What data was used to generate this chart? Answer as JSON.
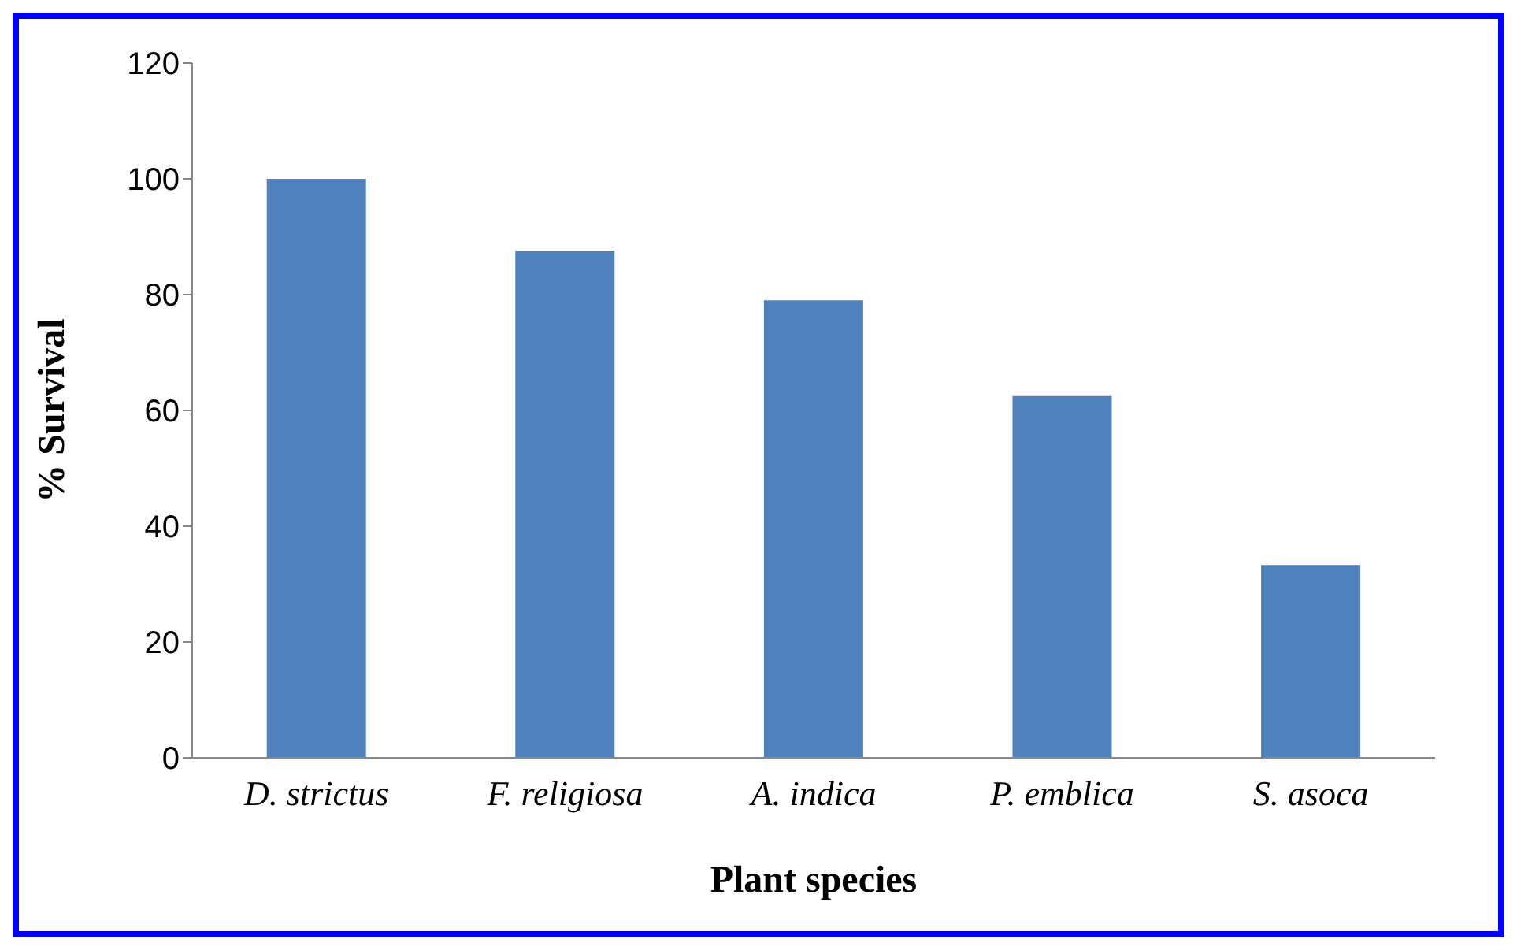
{
  "chart_data": {
    "type": "bar",
    "xlabel": "Plant species",
    "ylabel": "% Survival",
    "categories": [
      "D. strictus",
      "F. religiosa",
      "A. indica",
      "P. emblica",
      "S. asoca"
    ],
    "values": [
      100,
      87.5,
      79,
      62.5,
      33.3
    ],
    "color": "#4f81bd",
    "ylim": [
      0,
      120
    ],
    "yticks": [
      0,
      20,
      40,
      60,
      80,
      100,
      120
    ],
    "grid": false
  }
}
